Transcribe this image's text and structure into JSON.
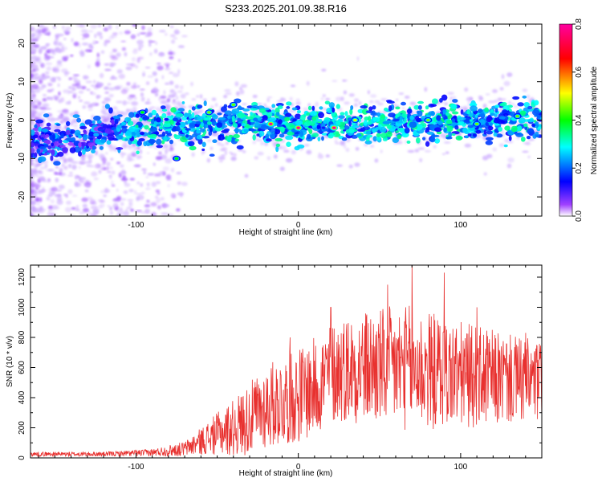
{
  "title": "S233.2025.201.09.38.R16",
  "chart_data": [
    {
      "type": "heatmap",
      "xlabel": "Height of straight line (km)",
      "ylabel": "Frequency (Hz)",
      "xlim": [
        -165,
        150
      ],
      "ylim": [
        -25,
        25
      ],
      "xticks": [
        -100,
        0,
        100
      ],
      "yticks": [
        -20,
        -10,
        0,
        10,
        20
      ],
      "colorbar": {
        "label": "Normalized spectral amplitude",
        "range": [
          0.0,
          0.8
        ],
        "ticks": [
          "0.0",
          "0.2",
          "0.4",
          "0.6",
          "0.8"
        ],
        "colors": [
          "#ffffff",
          "#8000ff",
          "#0000ff",
          "#00ffff",
          "#00ff00",
          "#ffff00",
          "#ff0000",
          "#ff00a0"
        ]
      },
      "grid": false,
      "band_center_profile": [
        [
          -165,
          -6
        ],
        [
          -140,
          -5
        ],
        [
          -120,
          -3
        ],
        [
          -100,
          -2
        ],
        [
          -80,
          -1
        ],
        [
          -60,
          -1.5
        ],
        [
          -40,
          -1
        ],
        [
          -20,
          -1
        ],
        [
          0,
          -1.5
        ],
        [
          20,
          -1
        ],
        [
          40,
          -1
        ],
        [
          60,
          -1
        ],
        [
          80,
          -0.5
        ],
        [
          100,
          -0.5
        ],
        [
          120,
          0
        ],
        [
          150,
          0
        ]
      ],
      "hotspots": [
        [
          -17,
          -1,
          0.8
        ],
        [
          0,
          -2,
          0.8
        ],
        [
          22,
          -2,
          0.8
        ],
        [
          -96,
          2,
          0.4
        ],
        [
          -55,
          2,
          0.45
        ],
        [
          -40,
          4,
          0.45
        ],
        [
          -75,
          -10,
          0.4
        ],
        [
          35,
          0,
          0.5
        ],
        [
          80,
          0,
          0.45
        ],
        [
          110,
          -1,
          0.45
        ],
        [
          135,
          1,
          0.45
        ]
      ]
    },
    {
      "type": "line",
      "xlabel": "Height of straight line (km)",
      "ylabel": "SNR (10 * v/v)",
      "xlim": [
        -165,
        150
      ],
      "ylim": [
        0,
        1280
      ],
      "xticks": [
        -100,
        0,
        100
      ],
      "yticks": [
        0,
        200,
        400,
        600,
        800,
        1000,
        1200
      ],
      "grid": false,
      "series": [
        {
          "color": "#e8312f",
          "envelope": {
            "x": [
              -165,
              -120,
              -90,
              -70,
              -60,
              -50,
              -40,
              -30,
              -20,
              -10,
              0,
              10,
              20,
              30,
              50,
              70,
              90,
              110,
              130,
              150
            ],
            "mean": [
              25,
              25,
              35,
              60,
              110,
              160,
              200,
              260,
              340,
              380,
              420,
              470,
              560,
              600,
              600,
              600,
              560,
              540,
              520,
              500
            ],
            "amplitude": [
              15,
              15,
              25,
              50,
              90,
              140,
              190,
              240,
              280,
              300,
              320,
              330,
              340,
              360,
              400,
              420,
              380,
              340,
              300,
              280
            ]
          },
          "peaks": [
            [
              -5,
              800
            ],
            [
              20,
              1000
            ],
            [
              55,
              1150
            ],
            [
              70,
              1290
            ],
            [
              90,
              1230
            ],
            [
              110,
              1000
            ],
            [
              140,
              830
            ]
          ]
        }
      ]
    }
  ]
}
